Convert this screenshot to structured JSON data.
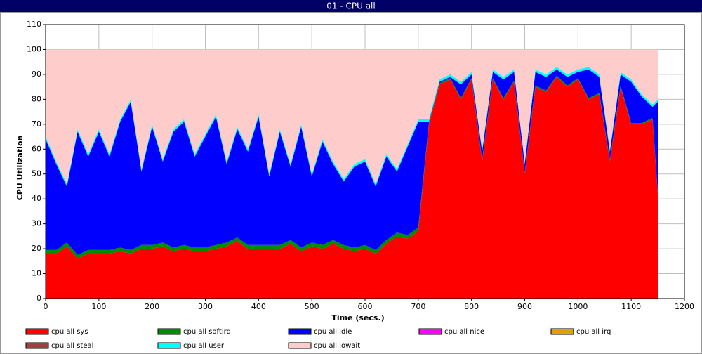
{
  "chart_data": {
    "type": "stacked_area",
    "title": "01 - CPU all",
    "xlabel": "Time (secs.)",
    "ylabel": "CPU Utilization",
    "xlim": [
      0,
      1200
    ],
    "ylim": [
      0,
      110
    ],
    "xticks": [
      0,
      100,
      200,
      300,
      400,
      500,
      600,
      700,
      800,
      900,
      1000,
      1100,
      1200
    ],
    "yticks": [
      0,
      10,
      20,
      30,
      40,
      50,
      60,
      70,
      80,
      90,
      100,
      110
    ],
    "grid": true,
    "legend": "bottom",
    "x": [
      0,
      20,
      40,
      60,
      80,
      100,
      120,
      140,
      160,
      180,
      200,
      220,
      240,
      260,
      280,
      300,
      320,
      340,
      360,
      380,
      400,
      420,
      440,
      460,
      480,
      500,
      520,
      540,
      560,
      580,
      600,
      620,
      640,
      660,
      680,
      700,
      720,
      740,
      760,
      780,
      800,
      820,
      840,
      860,
      880,
      900,
      920,
      940,
      960,
      980,
      1000,
      1020,
      1040,
      1060,
      1080,
      1100,
      1120,
      1140,
      1150
    ],
    "series": [
      {
        "name": "cpu all sys",
        "color": "#ff0000",
        "values": [
          18,
          18,
          21,
          16,
          18,
          18,
          18,
          19,
          18,
          20,
          20,
          21,
          19,
          20,
          19,
          19,
          20,
          21,
          23,
          20,
          20,
          20,
          20,
          22,
          19,
          21,
          20,
          22,
          20,
          19,
          20,
          18,
          22,
          25,
          24,
          27,
          70,
          86,
          88,
          80,
          88,
          55,
          88,
          80,
          87,
          50,
          85,
          83,
          89,
          85,
          88,
          80,
          82,
          55,
          85,
          70,
          70,
          72,
          42
        ]
      },
      {
        "name": "cpu all softirq",
        "color": "#008c00",
        "values": [
          1.5,
          1.5,
          1.5,
          1.5,
          1.5,
          1.5,
          1.5,
          1.5,
          1.5,
          1.5,
          1.5,
          1.5,
          1.5,
          1.5,
          1.5,
          1.5,
          1.5,
          1.5,
          1.5,
          1.5,
          1.5,
          1.5,
          1.5,
          1.5,
          1.5,
          1.5,
          1.5,
          1.5,
          1.5,
          1.5,
          1.5,
          1.5,
          1.5,
          1.5,
          1.5,
          1.5,
          0.5,
          0.5,
          0.5,
          0.5,
          0.5,
          0.5,
          0.5,
          0.5,
          0.5,
          0.5,
          0.5,
          0.5,
          0.5,
          0.5,
          0.5,
          0.5,
          0.5,
          0.5,
          0.5,
          0.5,
          0.5,
          0.5,
          0.5
        ]
      },
      {
        "name": "cpu all idle",
        "color": "#0000ff",
        "values": [
          44.5,
          34.5,
          22.5,
          49.5,
          37.5,
          47.5,
          37.5,
          50.5,
          59.5,
          29.5,
          47.5,
          32.5,
          46.5,
          49.5,
          36.5,
          44.5,
          51.5,
          31.5,
          43.5,
          37.5,
          51.5,
          27.5,
          45.5,
          29.5,
          48.5,
          26.5,
          41.5,
          30.5,
          25.5,
          32.5,
          33.5,
          25.5,
          33.5,
          24.5,
          35.5,
          42.5,
          0.5,
          0.5,
          0.5,
          5.5,
          1.5,
          3.5,
          2.5,
          7.5,
          3.5,
          3.5,
          5.5,
          5.5,
          2.5,
          3.5,
          2.5,
          11.5,
          6.5,
          3.5,
          4.5,
          16.5,
          10.5,
          4.5,
          36.5
        ]
      },
      {
        "name": "cpu all nice",
        "color": "#ff00ff",
        "values": [
          0,
          0,
          0,
          0,
          0,
          0,
          0,
          0,
          0,
          0,
          0,
          0,
          0,
          0,
          0,
          0,
          0,
          0,
          0,
          0,
          0,
          0,
          0,
          0,
          0,
          0,
          0,
          0,
          0,
          0,
          0,
          0,
          0,
          0,
          0,
          0,
          0,
          0,
          0,
          0,
          0,
          0,
          0,
          0,
          0,
          0,
          0,
          0,
          0,
          0,
          0,
          0,
          0,
          0,
          0,
          0,
          0,
          0,
          0
        ]
      },
      {
        "name": "cpu all irq",
        "color": "#e0a000",
        "values": [
          0,
          0,
          0,
          0,
          0,
          0,
          0,
          0,
          0,
          0,
          0,
          0,
          0,
          0,
          0,
          0,
          0,
          0,
          0,
          0,
          0,
          0,
          0,
          0,
          0,
          0,
          0,
          0,
          0,
          0,
          0,
          0,
          0,
          0,
          0,
          0,
          0,
          0,
          0,
          0,
          0,
          0,
          0,
          0,
          0,
          0,
          0,
          0,
          0,
          0,
          0,
          0,
          0,
          0,
          0,
          0,
          0,
          0,
          0
        ]
      },
      {
        "name": "cpu all steal",
        "color": "#a04040",
        "values": [
          0,
          0,
          0,
          0,
          0,
          0,
          0,
          0,
          0,
          0,
          0,
          0,
          0,
          0,
          0,
          0,
          0,
          0,
          0,
          0,
          0,
          0,
          0,
          0,
          0,
          0,
          0,
          0,
          0,
          0,
          0,
          0,
          0,
          0,
          0,
          0,
          0,
          0,
          0,
          0,
          0,
          0,
          0,
          0,
          0,
          0,
          0,
          0,
          0,
          0,
          0,
          0,
          0,
          0,
          0,
          0,
          0,
          0,
          0
        ]
      },
      {
        "name": "cpu all user",
        "color": "#00ffff",
        "values": [
          1,
          1,
          1,
          1,
          1,
          1,
          1,
          1,
          1,
          1,
          1,
          1,
          1,
          1,
          1,
          1,
          1,
          1,
          1,
          1,
          1,
          1,
          1,
          1,
          1,
          1,
          1,
          1,
          1,
          1,
          1,
          1,
          1,
          1,
          1,
          1,
          1,
          1,
          1,
          1,
          1,
          1,
          1,
          1,
          1,
          1,
          1,
          1,
          1,
          1,
          1,
          1,
          1,
          1,
          1,
          1,
          1,
          1,
          1
        ]
      },
      {
        "name": "cpu all iowait",
        "color": "#ffcccc",
        "values": [
          35,
          45,
          54,
          32,
          42,
          32,
          42,
          28,
          20,
          48,
          30,
          44,
          32,
          28,
          42,
          34,
          26,
          45,
          31,
          40,
          26,
          50,
          32,
          46,
          30,
          50,
          36,
          45,
          52,
          46,
          44,
          54,
          42,
          48,
          38,
          28,
          28,
          12,
          10,
          13,
          9,
          40,
          8,
          11,
          8,
          45,
          8,
          10,
          7,
          10,
          8,
          7,
          10,
          40,
          9,
          12,
          18,
          22,
          20
        ]
      }
    ]
  }
}
